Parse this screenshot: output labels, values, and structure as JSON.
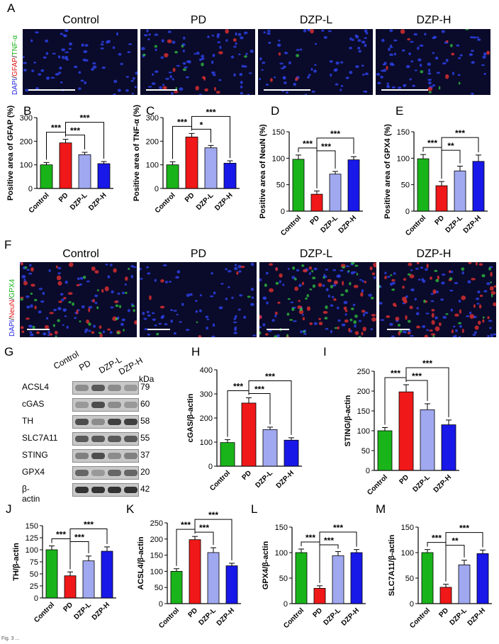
{
  "panel_labels": {
    "A": "A",
    "B": "B",
    "C": "C",
    "D": "D",
    "E": "E",
    "F": "F",
    "G": "G",
    "H": "H",
    "I": "I",
    "J": "J",
    "K": "K",
    "L": "L",
    "M": "M"
  },
  "row_a": {
    "groups": [
      "Control",
      "PD",
      "DZP-L",
      "DZP-H"
    ],
    "stain_label": {
      "dapi": "DAPI",
      "sep1": "/",
      "gfap": "GFAP",
      "sep2": "/",
      "tnf": "TNF-α"
    }
  },
  "row_f": {
    "groups": [
      "Control",
      "PD",
      "DZP-L",
      "DZP-H"
    ],
    "stain_label": {
      "dapi": "DAPI",
      "sep1": "/",
      "neun": "NeuN",
      "sep2": "/",
      "gpx4": "GPX4"
    }
  },
  "western_blot": {
    "lanes": [
      "Control",
      "PD",
      "DZP-L",
      "DZP-H"
    ],
    "kda_header": "kDa",
    "proteins": [
      {
        "name": "ACSL4",
        "kda": "79"
      },
      {
        "name": "cGAS",
        "kda": "60"
      },
      {
        "name": "TH",
        "kda": "58"
      },
      {
        "name": "SLC7A11",
        "kda": "55"
      },
      {
        "name": "STING",
        "kda": "37"
      },
      {
        "name": "GPX4",
        "kda": "20"
      },
      {
        "name": "β-actin",
        "kda": "42"
      }
    ]
  },
  "colors": {
    "control": "#19b419",
    "pd": "#f01818",
    "dzpl": "#a0a8f0",
    "dzph": "#1818e8"
  },
  "caption": "Fig. 3 ...",
  "chart_data": [
    {
      "id": "B",
      "type": "bar",
      "categories": [
        "Control",
        "PD",
        "DZP-L",
        "DZP-H"
      ],
      "values": [
        100,
        193,
        143,
        105
      ],
      "errors": [
        10,
        15,
        10,
        9
      ],
      "ylabel": "Positive area of GFAP (%)",
      "ylim": [
        0,
        300
      ],
      "yticks": [
        0,
        100,
        200,
        300
      ],
      "sig": [
        {
          "from": 0,
          "to": 1,
          "label": "***"
        },
        {
          "from": 1,
          "to": 2,
          "label": "***"
        },
        {
          "from": 1,
          "to": 3,
          "label": "***"
        }
      ]
    },
    {
      "id": "C",
      "type": "bar",
      "categories": [
        "Control",
        "PD",
        "DZP-L",
        "DZP-H"
      ],
      "values": [
        100,
        218,
        172,
        107
      ],
      "errors": [
        13,
        15,
        10,
        10
      ],
      "ylabel": "Positive area of TNF-α (%)",
      "ylim": [
        0,
        300
      ],
      "yticks": [
        0,
        100,
        200,
        300
      ],
      "sig": [
        {
          "from": 0,
          "to": 1,
          "label": "***"
        },
        {
          "from": 1,
          "to": 2,
          "label": "*"
        },
        {
          "from": 1,
          "to": 3,
          "label": "***"
        }
      ]
    },
    {
      "id": "D",
      "type": "bar",
      "categories": [
        "Control",
        "PD",
        "DZP-L",
        "DZP-H"
      ],
      "values": [
        98,
        32,
        70,
        97
      ],
      "errors": [
        8,
        6,
        5,
        6
      ],
      "ylabel": "Positive area of NeuN (%)",
      "ylim": [
        0,
        150
      ],
      "yticks": [
        0,
        50,
        100,
        150
      ],
      "sig": [
        {
          "from": 0,
          "to": 1,
          "label": "***"
        },
        {
          "from": 1,
          "to": 2,
          "label": "***"
        },
        {
          "from": 1,
          "to": 3,
          "label": "***"
        }
      ]
    },
    {
      "id": "E",
      "type": "bar",
      "categories": [
        "Control",
        "PD",
        "DZP-L",
        "DZP-H"
      ],
      "values": [
        99,
        48,
        76,
        94
      ],
      "errors": [
        8,
        8,
        9,
        12
      ],
      "ylabel": "Positive area of GPX4 (%)",
      "ylim": [
        0,
        150
      ],
      "yticks": [
        0,
        50,
        100,
        150
      ],
      "sig": [
        {
          "from": 0,
          "to": 1,
          "label": "***"
        },
        {
          "from": 1,
          "to": 2,
          "label": "**"
        },
        {
          "from": 1,
          "to": 3,
          "label": "***"
        }
      ]
    },
    {
      "id": "H",
      "type": "bar",
      "categories": [
        "Control",
        "PD",
        "DZP-L",
        "DZP-H"
      ],
      "values": [
        98,
        262,
        152,
        108
      ],
      "errors": [
        12,
        22,
        10,
        10
      ],
      "ylabel": "cGAS/β-actin",
      "ylim": [
        0,
        400
      ],
      "yticks": [
        0,
        100,
        200,
        300,
        400
      ],
      "sig": [
        {
          "from": 0,
          "to": 1,
          "label": "***"
        },
        {
          "from": 1,
          "to": 2,
          "label": "***"
        },
        {
          "from": 1,
          "to": 3,
          "label": "***"
        }
      ]
    },
    {
      "id": "I",
      "type": "bar",
      "categories": [
        "Control",
        "PD",
        "DZP-L",
        "DZP-H"
      ],
      "values": [
        100,
        198,
        153,
        115
      ],
      "errors": [
        8,
        18,
        15,
        12
      ],
      "ylabel": "STING/β-actin",
      "ylim": [
        0,
        250
      ],
      "yticks": [
        0,
        50,
        100,
        150,
        200,
        250
      ],
      "sig": [
        {
          "from": 0,
          "to": 1,
          "label": "***"
        },
        {
          "from": 1,
          "to": 2,
          "label": "***"
        },
        {
          "from": 1,
          "to": 3,
          "label": "***"
        }
      ]
    },
    {
      "id": "J",
      "type": "bar",
      "categories": [
        "Control",
        "PD",
        "DZP-L",
        "DZP-H"
      ],
      "values": [
        100,
        46,
        77,
        97
      ],
      "errors": [
        8,
        8,
        10,
        9
      ],
      "ylabel": "TH/β-actin",
      "ylim": [
        0,
        150
      ],
      "yticks": [
        0,
        25,
        50,
        75,
        100,
        125,
        150
      ],
      "sig": [
        {
          "from": 0,
          "to": 1,
          "label": "***"
        },
        {
          "from": 1,
          "to": 2,
          "label": "***"
        },
        {
          "from": 1,
          "to": 3,
          "label": "***"
        }
      ]
    },
    {
      "id": "K",
      "type": "bar",
      "categories": [
        "Control",
        "PD",
        "DZP-L",
        "DZP-H"
      ],
      "values": [
        100,
        198,
        158,
        117
      ],
      "errors": [
        8,
        10,
        15,
        8
      ],
      "ylabel": "ACSL4/β-actin",
      "ylim": [
        0,
        250
      ],
      "yticks": [
        0,
        50,
        100,
        150,
        200,
        250
      ],
      "sig": [
        {
          "from": 0,
          "to": 1,
          "label": "***"
        },
        {
          "from": 1,
          "to": 2,
          "label": "***"
        },
        {
          "from": 1,
          "to": 3,
          "label": "***"
        }
      ]
    },
    {
      "id": "L",
      "type": "bar",
      "categories": [
        "Control",
        "PD",
        "DZP-L",
        "DZP-H"
      ],
      "values": [
        100,
        30,
        94,
        100
      ],
      "errors": [
        7,
        5,
        8,
        6
      ],
      "ylabel": "GPX4/β-actin",
      "ylim": [
        0,
        150
      ],
      "yticks": [
        0,
        50,
        100,
        150
      ],
      "sig": [
        {
          "from": 0,
          "to": 1,
          "label": "***"
        },
        {
          "from": 1,
          "to": 2,
          "label": "***"
        },
        {
          "from": 1,
          "to": 3,
          "label": "***"
        }
      ]
    },
    {
      "id": "M",
      "type": "bar",
      "categories": [
        "Control",
        "PD",
        "DZP-L",
        "DZP-H"
      ],
      "values": [
        100,
        32,
        76,
        98
      ],
      "errors": [
        6,
        6,
        9,
        7
      ],
      "ylabel": "SLC7A11/β-actin",
      "ylim": [
        0,
        150
      ],
      "yticks": [
        0,
        50,
        100,
        150
      ],
      "sig": [
        {
          "from": 0,
          "to": 1,
          "label": "***"
        },
        {
          "from": 1,
          "to": 2,
          "label": "**"
        },
        {
          "from": 1,
          "to": 3,
          "label": "***"
        }
      ]
    }
  ]
}
